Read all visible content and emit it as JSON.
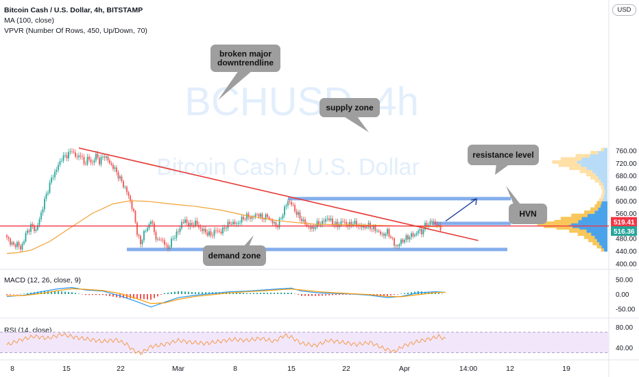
{
  "header": {
    "symbol_line": "Bitcoin Cash / U.S. Dollar, 4h, BITSTAMP",
    "ma_label": "MA (100, close)",
    "vpvr_label": "VPVR (Number Of Rows, 450, Up/Down, 70)",
    "currency": "USD"
  },
  "watermark": {
    "main": "BCHUSD, 4h",
    "sub": "Bitcoin Cash / U.S. Dollar"
  },
  "colors": {
    "up": "#26a69a",
    "down": "#ef5350",
    "trendline": "#e53935",
    "zone": "#6fa0e8",
    "ma": "#f0a030",
    "macd": "#2196f3",
    "signal": "#ff9800",
    "rsi": "#f39c4a",
    "rsi_band": "#f2e6fb",
    "vol_up": "#b8dcf7",
    "vol_down": "#ffe0a6",
    "arrow": "#1e3f9a",
    "callout": "#9e9e9e",
    "price_tag_red": "#f23645",
    "price_tag_teal": "#26a69a"
  },
  "chart_data": [
    {
      "type": "candlestick",
      "name": "price",
      "x_ticks": [
        "8",
        "15",
        "22",
        "Mar",
        "8",
        "15",
        "22",
        "Apr",
        "14:00",
        "12",
        "19"
      ],
      "y_ticks": [
        400,
        440,
        480,
        520,
        560,
        600,
        640,
        680,
        720,
        760
      ],
      "ylim": [
        392,
        780
      ],
      "close_path": [
        [
          0,
          480
        ],
        [
          2,
          470
        ],
        [
          4,
          455
        ],
        [
          6,
          465
        ],
        [
          8,
          445
        ],
        [
          11,
          492
        ],
        [
          14,
          520
        ],
        [
          17,
          505
        ],
        [
          19,
          540
        ],
        [
          21,
          580
        ],
        [
          22,
          600
        ],
        [
          24,
          635
        ],
        [
          26,
          670
        ],
        [
          29,
          700
        ],
        [
          32,
          735
        ],
        [
          35,
          745
        ],
        [
          38,
          760
        ],
        [
          41,
          735
        ],
        [
          43,
          750
        ],
        [
          45,
          715
        ],
        [
          47,
          735
        ],
        [
          50,
          720
        ],
        [
          52,
          745
        ],
        [
          54,
          725
        ],
        [
          57,
          745
        ],
        [
          60,
          720
        ],
        [
          63,
          700
        ],
        [
          66,
          670
        ],
        [
          69,
          640
        ],
        [
          71,
          615
        ],
        [
          72,
          600
        ],
        [
          74,
          560
        ],
        [
          76,
          500
        ],
        [
          78,
          460
        ],
        [
          80,
          500
        ],
        [
          82,
          510
        ],
        [
          84,
          540
        ],
        [
          86,
          500
        ],
        [
          88,
          470
        ],
        [
          90,
          480
        ],
        [
          92,
          462
        ],
        [
          94,
          447
        ],
        [
          96,
          470
        ],
        [
          98,
          490
        ],
        [
          100,
          500
        ],
        [
          102,
          530
        ],
        [
          104,
          535
        ],
        [
          107,
          520
        ],
        [
          110,
          530
        ],
        [
          113,
          510
        ],
        [
          116,
          500
        ],
        [
          119,
          490
        ],
        [
          122,
          505
        ],
        [
          125,
          500
        ],
        [
          128,
          520
        ],
        [
          131,
          530
        ],
        [
          134,
          525
        ],
        [
          137,
          540
        ],
        [
          140,
          550
        ],
        [
          143,
          545
        ],
        [
          146,
          558
        ],
        [
          149,
          545
        ],
        [
          152,
          550
        ],
        [
          155,
          530
        ],
        [
          158,
          520
        ],
        [
          161,
          560
        ],
        [
          164,
          600
        ],
        [
          166,
          590
        ],
        [
          169,
          560
        ],
        [
          172,
          540
        ],
        [
          175,
          520
        ],
        [
          178,
          510
        ],
        [
          181,
          525
        ],
        [
          184,
          530
        ],
        [
          187,
          545
        ],
        [
          190,
          530
        ],
        [
          193,
          520
        ],
        [
          196,
          535
        ],
        [
          199,
          520
        ],
        [
          202,
          530
        ],
        [
          205,
          520
        ],
        [
          208,
          515
        ],
        [
          211,
          520
        ],
        [
          214,
          510
        ],
        [
          216,
          505
        ],
        [
          219,
          490
        ],
        [
          222,
          500
        ],
        [
          224,
          485
        ],
        [
          226,
          460
        ],
        [
          228,
          455
        ],
        [
          230,
          470
        ],
        [
          233,
          480
        ],
        [
          236,
          490
        ],
        [
          238,
          490
        ],
        [
          240,
          505
        ],
        [
          242,
          500
        ],
        [
          244,
          520
        ],
        [
          246,
          525
        ],
        [
          248,
          535
        ],
        [
          250,
          528
        ],
        [
          252,
          515
        ],
        [
          254,
          510
        ]
      ],
      "overlays": {
        "ma_100": [
          [
            0,
            432
          ],
          [
            6,
            434
          ],
          [
            14,
            442
          ],
          [
            25,
            470
          ],
          [
            36,
            510
          ],
          [
            50,
            560
          ],
          [
            62,
            590
          ],
          [
            72,
            600
          ],
          [
            82,
            598
          ],
          [
            95,
            590
          ],
          [
            110,
            582
          ],
          [
            125,
            570
          ],
          [
            140,
            552
          ],
          [
            160,
            535
          ],
          [
            180,
            525
          ],
          [
            200,
            523
          ],
          [
            220,
            521
          ],
          [
            240,
            518
          ],
          [
            254,
            517
          ]
        ],
        "trendline": [
          [
            42,
            768
          ],
          [
            275,
            473
          ]
        ],
        "zones": [
          {
            "label": "supply zone",
            "x": [
              164,
              294
            ],
            "price": [
              604,
              612
            ]
          },
          {
            "label": "demand zone",
            "x": [
              70,
              292
            ],
            "price": [
              441,
              450
            ]
          },
          {
            "label": "resistance level",
            "x": [
              248,
              294
            ],
            "price": [
              528,
              533
            ]
          }
        ],
        "horizontal_line": 519.41,
        "projection_arrow": [
          [
            256,
            535
          ],
          [
            274,
            606
          ]
        ]
      },
      "price_tags": [
        519.41,
        516.36
      ],
      "annotations": [
        "broken major\ndowntrendline",
        "supply zone",
        "resistance level",
        "HVN",
        "demand zone"
      ]
    },
    {
      "type": "line",
      "name": "MACD",
      "label": "MACD (12, 26, close, 9)",
      "y_ticks": [
        50.0,
        0.0,
        -50.0
      ],
      "ylim": [
        -65,
        65
      ],
      "macd": [
        [
          0,
          -8
        ],
        [
          10,
          -4
        ],
        [
          20,
          8
        ],
        [
          30,
          18
        ],
        [
          38,
          22
        ],
        [
          46,
          14
        ],
        [
          56,
          10
        ],
        [
          66,
          -6
        ],
        [
          76,
          -26
        ],
        [
          84,
          -44
        ],
        [
          92,
          -28
        ],
        [
          100,
          -12
        ],
        [
          110,
          -4
        ],
        [
          120,
          2
        ],
        [
          130,
          8
        ],
        [
          140,
          10
        ],
        [
          150,
          14
        ],
        [
          160,
          18
        ],
        [
          166,
          20
        ],
        [
          172,
          10
        ],
        [
          182,
          4
        ],
        [
          192,
          2
        ],
        [
          202,
          0
        ],
        [
          212,
          -4
        ],
        [
          222,
          -12
        ],
        [
          230,
          -8
        ],
        [
          240,
          4
        ],
        [
          250,
          8
        ],
        [
          256,
          6
        ]
      ],
      "signal": [
        [
          0,
          -6
        ],
        [
          10,
          -5
        ],
        [
          20,
          2
        ],
        [
          30,
          12
        ],
        [
          38,
          18
        ],
        [
          46,
          16
        ],
        [
          56,
          12
        ],
        [
          66,
          2
        ],
        [
          76,
          -16
        ],
        [
          84,
          -32
        ],
        [
          92,
          -30
        ],
        [
          100,
          -18
        ],
        [
          110,
          -8
        ],
        [
          120,
          -2
        ],
        [
          130,
          4
        ],
        [
          140,
          8
        ],
        [
          150,
          11
        ],
        [
          160,
          15
        ],
        [
          166,
          17
        ],
        [
          172,
          14
        ],
        [
          182,
          8
        ],
        [
          192,
          4
        ],
        [
          202,
          1
        ],
        [
          212,
          -2
        ],
        [
          222,
          -8
        ],
        [
          230,
          -9
        ],
        [
          240,
          -2
        ],
        [
          250,
          5
        ],
        [
          256,
          6
        ]
      ]
    },
    {
      "type": "line",
      "name": "RSI",
      "label": "RSI (14, close)",
      "y_ticks": [
        80.0,
        40.0
      ],
      "band": [
        30,
        70
      ],
      "ylim": [
        20,
        90
      ],
      "values": [
        [
          0,
          45
        ],
        [
          8,
          55
        ],
        [
          16,
          62
        ],
        [
          24,
          58
        ],
        [
          32,
          66
        ],
        [
          40,
          60
        ],
        [
          48,
          56
        ],
        [
          56,
          52
        ],
        [
          64,
          55
        ],
        [
          70,
          46
        ],
        [
          74,
          34
        ],
        [
          78,
          28
        ],
        [
          84,
          42
        ],
        [
          92,
          46
        ],
        [
          100,
          54
        ],
        [
          108,
          50
        ],
        [
          116,
          48
        ],
        [
          124,
          52
        ],
        [
          132,
          56
        ],
        [
          140,
          54
        ],
        [
          148,
          58
        ],
        [
          156,
          52
        ],
        [
          162,
          64
        ],
        [
          166,
          60
        ],
        [
          172,
          48
        ],
        [
          180,
          44
        ],
        [
          188,
          54
        ],
        [
          196,
          50
        ],
        [
          204,
          46
        ],
        [
          212,
          50
        ],
        [
          220,
          38
        ],
        [
          226,
          32
        ],
        [
          232,
          44
        ],
        [
          240,
          52
        ],
        [
          248,
          58
        ],
        [
          252,
          62
        ],
        [
          256,
          56
        ]
      ]
    },
    {
      "type": "bar",
      "name": "volume profile",
      "note": "horizontal volume-by-price histogram; lengths relative",
      "rows": [
        [
          440,
          6
        ],
        [
          450,
          10
        ],
        [
          460,
          14
        ],
        [
          470,
          18
        ],
        [
          480,
          22
        ],
        [
          490,
          28
        ],
        [
          500,
          36
        ],
        [
          510,
          48
        ],
        [
          515,
          60
        ],
        [
          520,
          66
        ],
        [
          525,
          62
        ],
        [
          530,
          50
        ],
        [
          540,
          44
        ],
        [
          550,
          34
        ],
        [
          560,
          22
        ],
        [
          570,
          16
        ],
        [
          580,
          12
        ],
        [
          590,
          10
        ],
        [
          600,
          8
        ],
        [
          610,
          6
        ],
        [
          620,
          5
        ],
        [
          630,
          5
        ],
        [
          640,
          6
        ],
        [
          650,
          8
        ],
        [
          660,
          12
        ],
        [
          670,
          16
        ],
        [
          680,
          20
        ],
        [
          690,
          26
        ],
        [
          700,
          36
        ],
        [
          710,
          46
        ],
        [
          720,
          52
        ],
        [
          730,
          44
        ],
        [
          740,
          30
        ],
        [
          750,
          16
        ],
        [
          760,
          6
        ]
      ]
    }
  ]
}
